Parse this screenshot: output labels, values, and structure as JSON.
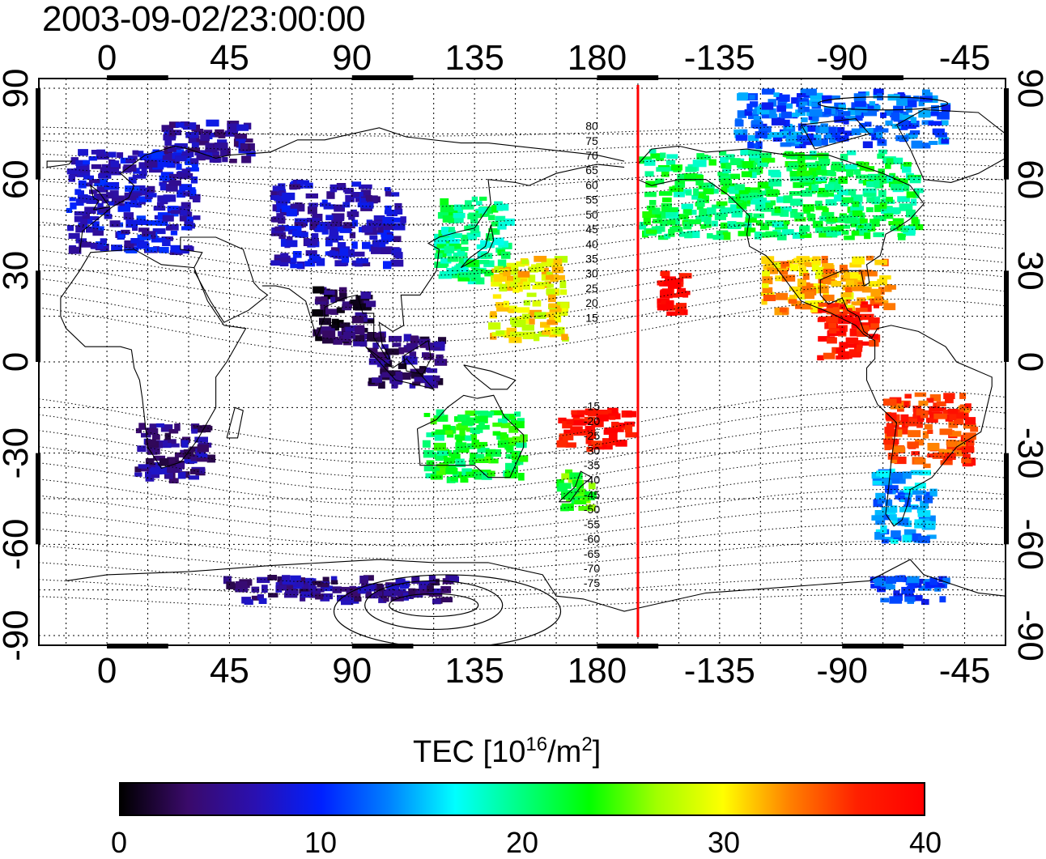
{
  "title": "2003-09-02/23:00:00",
  "map": {
    "projection": "equirectangular",
    "lon_center_tick_labels": [
      "0",
      "45",
      "90",
      "135",
      "180",
      "-135",
      "-90",
      "-45"
    ],
    "lon_tick_values": [
      0,
      45,
      90,
      135,
      180,
      225,
      270,
      315
    ],
    "lat_tick_labels": [
      "90",
      "60",
      "30",
      "0",
      "-30",
      "-60",
      "-90"
    ],
    "lat_tick_values": [
      90,
      60,
      30,
      0,
      -30,
      -60,
      -90
    ],
    "lon_range": [
      -25,
      330
    ],
    "lat_range": [
      -90,
      90
    ],
    "grid": true,
    "sun_meridian_lon": 195,
    "sun_meridian_color": "#ff0000",
    "contour_labels": [
      "80",
      "75",
      "70",
      "65",
      "60",
      "55",
      "50",
      "45",
      "40",
      "35",
      "30",
      "25",
      "20",
      "15",
      "-15",
      "-20",
      "-25",
      "-30",
      "-35",
      "-40",
      "-45",
      "-50",
      "-55",
      "-60",
      "-65",
      "-70",
      "-75"
    ],
    "contour_label_lats": [
      80,
      75,
      70,
      65,
      60,
      55,
      50,
      45,
      40,
      35,
      30,
      25,
      20,
      15,
      -15,
      -20,
      -25,
      -30,
      -35,
      -40,
      -45,
      -50,
      -55,
      -60,
      -65,
      -70,
      -75
    ]
  },
  "colorbar": {
    "label_main": "TEC  [10",
    "label_exp1": "16",
    "label_mid": "/m",
    "label_exp2": "2",
    "label_end": "]",
    "min": 0,
    "max": 40,
    "ticks": [
      "0",
      "10",
      "20",
      "30",
      "40"
    ],
    "tick_values": [
      0,
      10,
      20,
      30,
      40
    ],
    "colors": [
      "#000000",
      "#3a0a6a",
      "#2a10b0",
      "#0020ff",
      "#0080ff",
      "#00ffff",
      "#00ff80",
      "#00ff00",
      "#a0ff00",
      "#ffff00",
      "#ff8000",
      "#ff2000",
      "#ff0000"
    ]
  },
  "chart_data": {
    "type": "heatmap",
    "title": "2003-09-02/23:00:00",
    "xlabel": "",
    "ylabel": "",
    "value_unit": "TEC [10^16/m^2]",
    "value_range": [
      0,
      40
    ],
    "regions": [
      {
        "lon": [
          -15,
          35
        ],
        "lat": [
          35,
          70
        ],
        "tec": 8
      },
      {
        "lon": [
          20,
          55
        ],
        "lat": [
          65,
          80
        ],
        "tec": 6
      },
      {
        "lon": [
          60,
          110
        ],
        "lat": [
          30,
          60
        ],
        "tec": 7
      },
      {
        "lon": [
          75,
          100
        ],
        "lat": [
          5,
          25
        ],
        "tec": 3
      },
      {
        "lon": [
          95,
          125
        ],
        "lat": [
          -10,
          10
        ],
        "tec": 4
      },
      {
        "lon": [
          10,
          40
        ],
        "lat": [
          -40,
          -20
        ],
        "tec": 5
      },
      {
        "lon": [
          120,
          150
        ],
        "lat": [
          25,
          55
        ],
        "tec": 20
      },
      {
        "lon": [
          140,
          170
        ],
        "lat": [
          5,
          35
        ],
        "tec": 30
      },
      {
        "lon": [
          115,
          155
        ],
        "lat": [
          -40,
          -15
        ],
        "tec": 22
      },
      {
        "lon": [
          165,
          195
        ],
        "lat": [
          -30,
          -15
        ],
        "tec": 39
      },
      {
        "lon": [
          165,
          180
        ],
        "lat": [
          -50,
          -35
        ],
        "tec": 24
      },
      {
        "lon": [
          200,
          215
        ],
        "lat": [
          15,
          30
        ],
        "tec": 39
      },
      {
        "lon": [
          195,
          300
        ],
        "lat": [
          40,
          70
        ],
        "tec": 21
      },
      {
        "lon": [
          240,
          290
        ],
        "lat": [
          15,
          35
        ],
        "tec": 32
      },
      {
        "lon": [
          260,
          285
        ],
        "lat": [
          0,
          20
        ],
        "tec": 38
      },
      {
        "lon": [
          285,
          320
        ],
        "lat": [
          -35,
          -10
        ],
        "tec": 36
      },
      {
        "lon": [
          280,
          305
        ],
        "lat": [
          -60,
          -35
        ],
        "tec": 14
      },
      {
        "lon": [
          230,
          310
        ],
        "lat": [
          70,
          90
        ],
        "tec": 12
      },
      {
        "lon": [
          40,
          130
        ],
        "lat": [
          -80,
          -70
        ],
        "tec": 5
      },
      {
        "lon": [
          280,
          310
        ],
        "lat": [
          -80,
          -70
        ],
        "tec": 11
      }
    ]
  }
}
